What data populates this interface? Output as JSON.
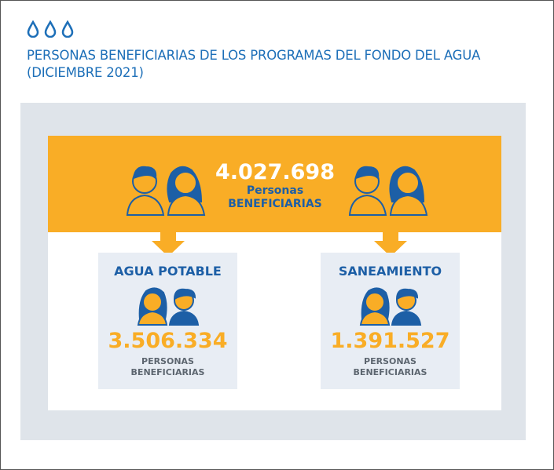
{
  "header": {
    "icon": "water-drops-icon",
    "title_line1": "PERSONAS BENEFICIARIAS DE LOS PROGRAMAS DEL FONDO DEL AGUA",
    "title_line2": "(DICIEMBRE 2021)"
  },
  "colors": {
    "blue": "#1d6fb8",
    "orange": "#f9ad26",
    "panel": "#dfe4ea",
    "card": "#e8edf4"
  },
  "total": {
    "value": "4.027.698",
    "label1": "Personas",
    "label2": "BENEFICIARIAS"
  },
  "cards": [
    {
      "title": "AGUA POTABLE",
      "value": "3.506.334",
      "label1": "PERSONAS",
      "label2": "BENEFICIARIAS"
    },
    {
      "title": "SANEAMIENTO",
      "value": "1.391.527",
      "label1": "PERSONAS",
      "label2": "BENEFICIARIAS"
    }
  ]
}
